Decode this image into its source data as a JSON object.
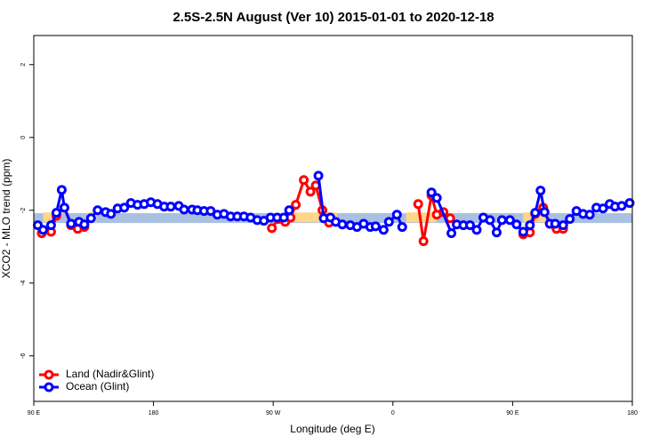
{
  "chart_data": {
    "type": "line",
    "title": "2.5S-2.5N August (Ver 10)   2015-01-01 to 2020-12-18",
    "x_label": "Longitude (deg E)",
    "y_label": "XCO2 - MLO trend (ppm)",
    "xlim": [
      90,
      540
    ],
    "ylim": [
      -7.25,
      2.8
    ],
    "xticks": [
      {
        "value": 90,
        "label": "90 E"
      },
      180,
      {
        "value": 270,
        "label": "90 W"
      },
      {
        "value": 360,
        "label": "0"
      },
      {
        "value": 450,
        "label": "90 E"
      },
      {
        "value": 540,
        "label": "180"
      }
    ],
    "yticks": [
      2,
      0,
      -2,
      -4,
      -6
    ],
    "band": {
      "color": "#a9c0e0",
      "range": [
        -2.35,
        -2.08
      ]
    },
    "land_band": {
      "color": "#ffd58a",
      "range": [
        -2.33,
        -2.06
      ],
      "spans": [
        [
          97,
          105
        ],
        [
          130,
          137
        ],
        [
          286,
          318
        ],
        [
          370,
          393
        ],
        [
          458,
          477
        ]
      ]
    },
    "legend": "bottom-left",
    "series": [
      {
        "name": "Land (Nadir&Glint)",
        "color": "#ff0000",
        "x": [
          96,
          103,
          107,
          113,
          118,
          123,
          128,
          null,
          269,
          274,
          279,
          283,
          287,
          293,
          298,
          302,
          307,
          312,
          null,
          379,
          383,
          389,
          393,
          398,
          403,
          null,
          458,
          463,
          467,
          473,
          478,
          483,
          488
        ],
        "values": [
          -2.63,
          -2.59,
          -2.15,
          -1.93,
          -2.41,
          -2.51,
          -2.46,
          null,
          -2.49,
          -2.24,
          -2.32,
          -2.2,
          -1.85,
          -1.17,
          -1.49,
          -1.32,
          -2.0,
          -2.34,
          null,
          -1.83,
          -2.85,
          -1.59,
          -2.12,
          -2.05,
          -2.22,
          null,
          -2.66,
          -2.61,
          -2.1,
          -1.93,
          -2.37,
          -2.51,
          -2.51
        ]
      },
      {
        "name": "Ocean (Glint)",
        "color": "#0000ff",
        "x": [
          93,
          97,
          103,
          107,
          111,
          113,
          118,
          124,
          128,
          133,
          138,
          144,
          148,
          153,
          158,
          163,
          168,
          173,
          178,
          183,
          188,
          193,
          199,
          203,
          209,
          213,
          218,
          223,
          228,
          233,
          238,
          243,
          248,
          253,
          258,
          263,
          268,
          273,
          278,
          282,
          null,
          304,
          308,
          313,
          317,
          322,
          328,
          333,
          338,
          343,
          347,
          353,
          357,
          363,
          367,
          null,
          389,
          393,
          404,
          408,
          413,
          418,
          423,
          428,
          433,
          438,
          442,
          448,
          453,
          458,
          463,
          467,
          471,
          474,
          478,
          482,
          488,
          493,
          498,
          503,
          508,
          513,
          518,
          523,
          527,
          532,
          538
        ],
        "values": [
          -2.41,
          -2.54,
          -2.41,
          -2.07,
          -1.44,
          -1.93,
          -2.37,
          -2.32,
          -2.39,
          -2.22,
          -2.0,
          -2.05,
          -2.1,
          -1.95,
          -1.93,
          -1.8,
          -1.85,
          -1.83,
          -1.78,
          -1.83,
          -1.9,
          -1.9,
          -1.88,
          -1.98,
          -1.98,
          -2.0,
          -2.02,
          -2.02,
          -2.12,
          -2.1,
          -2.17,
          -2.17,
          -2.17,
          -2.2,
          -2.27,
          -2.29,
          -2.2,
          -2.2,
          -2.2,
          -2.0,
          null,
          -1.05,
          -2.22,
          -2.2,
          -2.32,
          -2.39,
          -2.41,
          -2.46,
          -2.37,
          -2.46,
          -2.44,
          -2.54,
          -2.32,
          -2.12,
          -2.46,
          null,
          -1.51,
          -1.66,
          -2.63,
          -2.39,
          -2.41,
          -2.41,
          -2.54,
          -2.2,
          -2.27,
          -2.61,
          -2.27,
          -2.27,
          -2.39,
          -2.59,
          -2.41,
          -2.07,
          -1.46,
          -2.05,
          -2.37,
          -2.37,
          -2.41,
          -2.24,
          -2.02,
          -2.1,
          -2.12,
          -1.93,
          -1.95,
          -1.83,
          -1.9,
          -1.88,
          -1.8
        ]
      }
    ]
  }
}
